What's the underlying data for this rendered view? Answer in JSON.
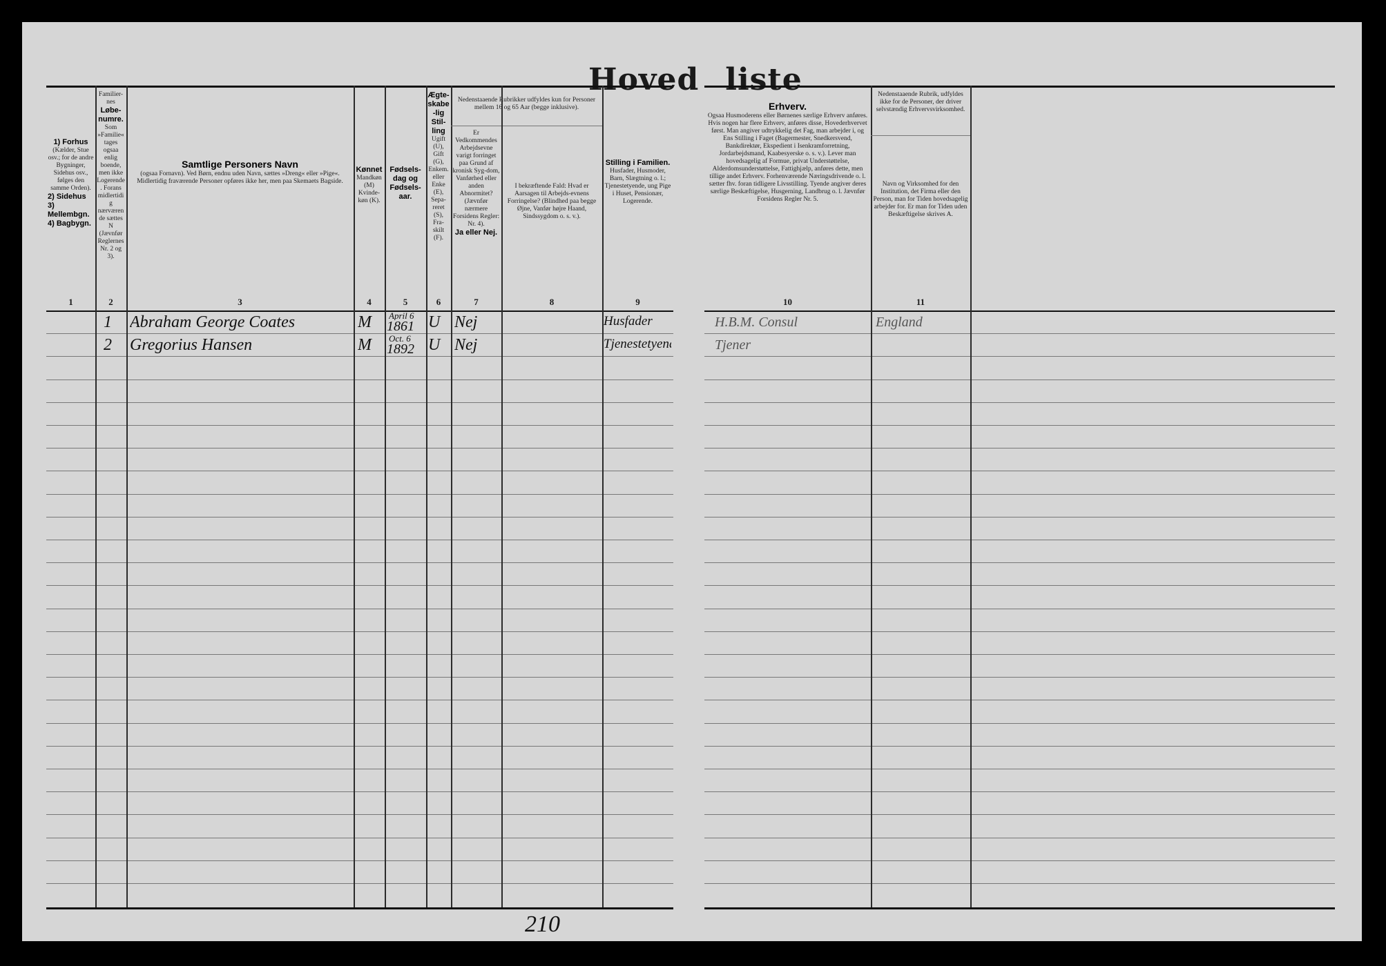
{
  "title_words": [
    "Hoved",
    "liste"
  ],
  "columns": [
    {
      "num": "1",
      "heading": "1) Forhus",
      "text": "(Kælder, Stue osv.; for de andre Bygninger, Sidehus osv., følges den samme Orden).",
      "extra": [
        "2) Sidehus",
        "3) Mellembgn.",
        "4) Bagbygn."
      ]
    },
    {
      "num": "2",
      "pre": "Familier-nes",
      "heading": "Løbe-numre.",
      "text": "Som »Familie« tages ogsaa enlig boende, men ikke Logerende. Forans midlertidig nærværende sættes N (Jævnfør Reglernes Nr. 2 og 3)."
    },
    {
      "num": "3",
      "heading": "Samtlige Personers Navn",
      "text": "(ogsaa Fornavn). Ved Børn, endnu uden Navn, sættes »Dreng« eller »Pige«. Midlertidig fraværende Personer opføres ikke her, men paa Skemaets Bagside."
    },
    {
      "num": "4",
      "heading": "Kønnet",
      "text": "Mandkøn (M) Kvinde-køn (K)."
    },
    {
      "num": "5",
      "heading": "Fødsels-dag og Fødsels-aar.",
      "text": ""
    },
    {
      "num": "6",
      "heading": "Ægte-skabe-lig Stil-ling",
      "text": "Ugift (U), Gift (G), Enkem. eller Enke (E), Sepa-reret (S), Fra-skilt (F)."
    },
    {
      "num": "7",
      "heading": "",
      "text": "Er Vedkommendes Arbejdsevne varigt forringet paa Grund af kronisk Syg-dom, Vanførhed eller anden Abnormitet? (Jævnfør nærmere Forsidens Regler: Nr. 4).",
      "tail": "Ja eller Nej."
    },
    {
      "num": "8",
      "heading": "",
      "text": "I bekræftende Fald: Hvad er Aarsagen til Arbejds-evnens Forringelse? (Blindhed paa begge Øjne, Vanfør højre Haand, Sindssygdom o. s. v.)."
    },
    {
      "num": "9",
      "heading": "Stilling i Familien.",
      "text": "Husfader, Husmoder, Barn, Slægtning o. l.; Tjenestetyende, ung Pige i Huset, Pensionær, Logerende."
    },
    {
      "num": "10",
      "heading": "Erhverv.",
      "text": "Ogsaa Husmoderens eller Børnenes særlige Erhverv anføres. Hvis nogen har flere Erhverv, anføres disse, Hovederhvervet først. Man angiver udtrykkelig det Fag, man arbejder i, og Ens Stilling i Faget (Bagermester, Snedkersvend, Bankdirektør, Ekspedient i Isenkramforretning, Jordarbejdsmand, Kaabesyerske o. s. v.). Lever man hovedsagelig af Formue, privat Understøttelse, Alderdomsunderstøttelse, Fattighjælp, anføres dette, men tillige andet Erhverv. Forhenværende Næringsdrivende o. l. sætter fhv. foran tidligere Livsstilling. Tyende angiver deres særlige Beskæftigelse, Husgerning, Landbrug o. l. Jævnfør Forsidens Regler Nr. 5."
    },
    {
      "num": "11",
      "heading": "",
      "text": "Navn og Virksomhed for den Institution, det Firma eller den Person, man for Tiden hovedsagelig arbejder for. Er man for Tiden uden Beskæftigelse skrives A."
    }
  ],
  "group_note_7_8": "Nedenstaaende Rubrikker udfyldes kun for Personer mellem 16 og 65 Aar (begge inklusive).",
  "group_note_11": "Nedenstaaende Rubrik, udfyldes ikke for de Personer, der driver selvstændig Erhvervsvirksomhed.",
  "rows": [
    {
      "no": "1",
      "name": "Abraham George Coates",
      "sex": "M",
      "birth_day": "April 6",
      "birth_year": "1861",
      "marital": "U",
      "disabled": "Nej",
      "family_role": "Husfader",
      "occupation": "H.B.M. Consul",
      "employer": "England"
    },
    {
      "no": "2",
      "name": "Gregorius Hansen",
      "sex": "M",
      "birth_day": "Oct. 6",
      "birth_year": "1892",
      "marital": "U",
      "disabled": "Nej",
      "family_role": "Tjenestetyende",
      "occupation": "Tjener",
      "employer": ""
    }
  ],
  "page_number_handwritten": "210"
}
